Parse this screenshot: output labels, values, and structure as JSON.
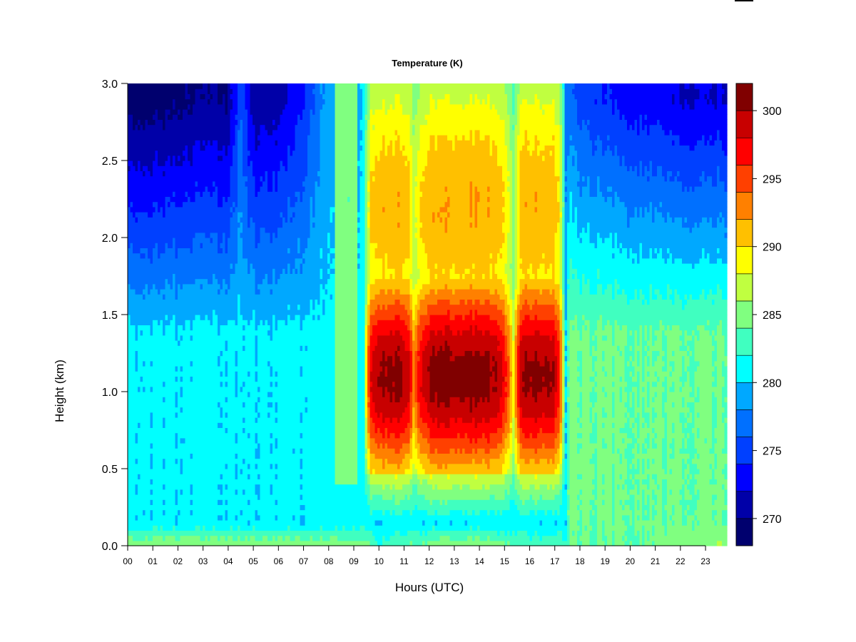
{
  "chart_data": {
    "type": "heatmap",
    "title": "Temperature (K)",
    "xlabel": "Hours (UTC)",
    "ylabel": "Height (km)",
    "x_ticks": [
      "00",
      "01",
      "02",
      "03",
      "04",
      "05",
      "06",
      "07",
      "08",
      "09",
      "10",
      "11",
      "12",
      "13",
      "14",
      "15",
      "16",
      "17",
      "18",
      "19",
      "20",
      "21",
      "22",
      "23"
    ],
    "y_ticks": [
      "0.0",
      "0.5",
      "1.0",
      "1.5",
      "2.0",
      "2.5",
      "3.0"
    ],
    "xlim": [
      0,
      23.85
    ],
    "ylim": [
      0,
      3.0
    ],
    "colorbar": {
      "levels": [
        268,
        270,
        272,
        274,
        276,
        278,
        280,
        282,
        284,
        286,
        288,
        290,
        292,
        294,
        296,
        298,
        300,
        302
      ],
      "colors": [
        "#00006e",
        "#0000a8",
        "#0000ff",
        "#0040ff",
        "#0070ff",
        "#00a8ff",
        "#00ffff",
        "#40ffc0",
        "#80ff80",
        "#c0ff40",
        "#ffff00",
        "#ffc000",
        "#ff8000",
        "#ff4000",
        "#ff0000",
        "#c80000",
        "#800000"
      ],
      "tick_values": [
        270,
        275,
        280,
        285,
        290,
        295,
        300
      ],
      "tick_labels": [
        "270",
        "275",
        "280",
        "285",
        "290",
        "295",
        "300"
      ]
    },
    "cold_layer_min_temperature": {
      "hours": [
        0,
        1,
        2,
        3,
        4,
        4.5,
        5,
        6,
        7,
        8,
        9,
        9.5,
        17,
        17.5,
        18,
        19,
        20,
        21,
        22,
        23.85
      ],
      "values": [
        269,
        269,
        269.5,
        270,
        270,
        276,
        270.5,
        271,
        274,
        279,
        279,
        280,
        280,
        277,
        275,
        274,
        273,
        273,
        272,
        272
      ]
    },
    "surface_temperature": {
      "hours": [
        0,
        3,
        6,
        9.5,
        10,
        12,
        14,
        16,
        18,
        20,
        23.85
      ],
      "values": [
        286,
        286,
        286,
        285,
        282,
        285,
        286,
        283,
        284,
        284,
        286
      ]
    },
    "warm_periods": [
      {
        "start": 9.6,
        "end": 11.3,
        "peak_temperature": 300.5
      },
      {
        "start": 11.5,
        "end": 15.1,
        "peak_temperature": 301.0
      },
      {
        "start": 15.5,
        "end": 17.2,
        "peak_temperature": 300.5
      }
    ]
  }
}
